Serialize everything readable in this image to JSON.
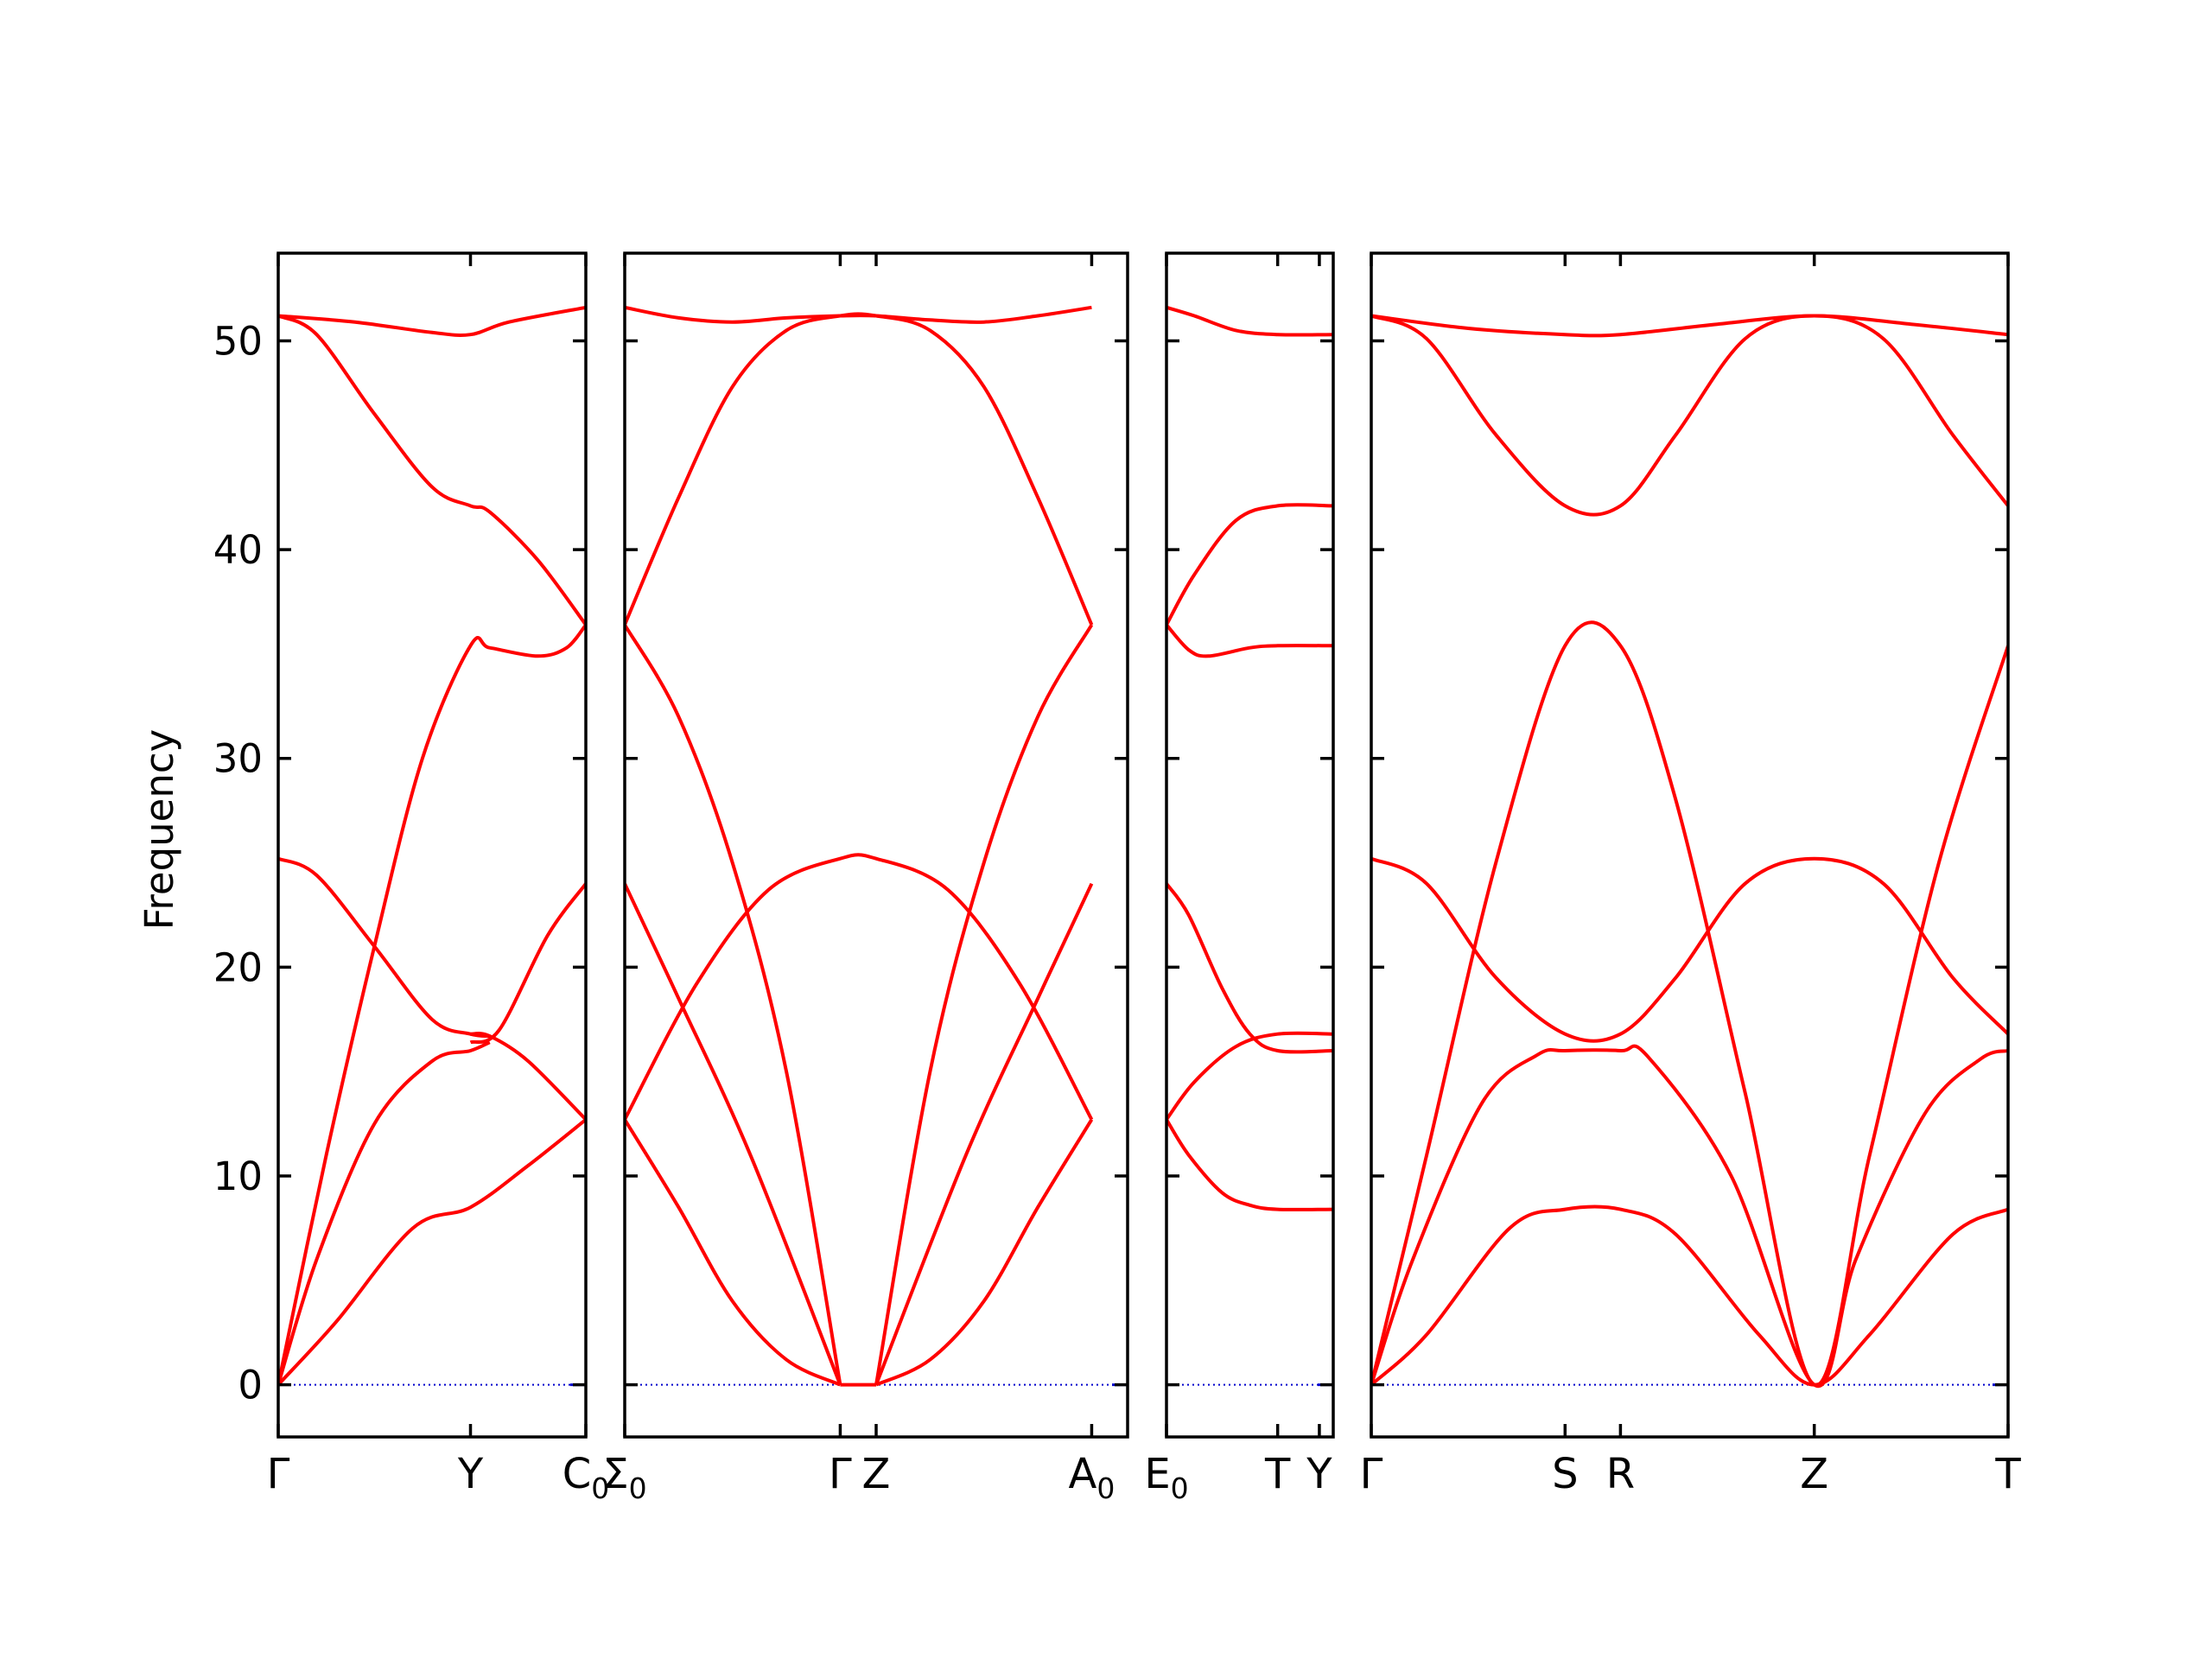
{
  "chart_data": {
    "type": "line",
    "ylabel": "Frequency",
    "ylim": [
      -2.5,
      54.2
    ],
    "yticks": [
      0,
      10,
      20,
      30,
      40,
      50
    ],
    "grid": false,
    "line_color": "#ff0000",
    "zero_line_color": "#0000cc",
    "panels": [
      {
        "name": "panel-1",
        "xlim": [
          0,
          1.6
        ],
        "points": [
          {
            "x": 0,
            "label": "Γ",
            "sub": ""
          },
          {
            "x": 1.0,
            "label": "Y",
            "sub": ""
          },
          {
            "x": 1.6,
            "label": "C",
            "sub": "0"
          }
        ],
        "bands": [
          [
            [
              0,
              0
            ],
            [
              0.3,
              3
            ],
            [
              0.7,
              7.5
            ],
            [
              1.0,
              8.5
            ],
            [
              1.3,
              10.5
            ],
            [
              1.6,
              12.7
            ]
          ],
          [
            [
              0,
              0
            ],
            [
              0.2,
              6
            ],
            [
              0.5,
              12.5
            ],
            [
              0.8,
              15.5
            ],
            [
              1.0,
              16
            ],
            [
              1.1,
              16.4
            ]
          ],
          [
            [
              1.0,
              16.8
            ],
            [
              1.1,
              16.7
            ],
            [
              1.3,
              15.5
            ],
            [
              1.6,
              12.7
            ]
          ],
          [
            [
              0,
              0
            ],
            [
              0.25,
              11
            ],
            [
              0.5,
              21
            ],
            [
              0.75,
              30
            ],
            [
              1.0,
              35.4
            ],
            [
              1.1,
              35.3
            ],
            [
              1.35,
              34.9
            ],
            [
              1.5,
              35.3
            ],
            [
              1.6,
              36.4
            ]
          ],
          [
            [
              0,
              25.2
            ],
            [
              0.2,
              24.4
            ],
            [
              0.5,
              21
            ],
            [
              0.8,
              17.5
            ],
            [
              1.0,
              16.8
            ],
            [
              1.1,
              16.7
            ]
          ],
          [
            [
              1.0,
              16.4
            ],
            [
              1.15,
              17
            ],
            [
              1.4,
              21.5
            ],
            [
              1.6,
              24
            ]
          ],
          [
            [
              0,
              51.2
            ],
            [
              0.2,
              50.3
            ],
            [
              0.5,
              46.5
            ],
            [
              0.8,
              43
            ],
            [
              1.0,
              42.1
            ],
            [
              1.1,
              41.8
            ],
            [
              1.35,
              39.5
            ],
            [
              1.6,
              36.4
            ]
          ],
          [
            [
              0,
              51.2
            ],
            [
              0.4,
              50.9
            ],
            [
              0.8,
              50.4
            ],
            [
              1.0,
              50.3
            ],
            [
              1.2,
              50.9
            ],
            [
              1.6,
              51.6
            ]
          ]
        ]
      },
      {
        "name": "panel-2",
        "xlim": [
          0,
          1.4
        ],
        "points": [
          {
            "x": 0,
            "label": "Σ",
            "sub": "0"
          },
          {
            "x": 0.6,
            "label": "Γ",
            "sub": ""
          },
          {
            "x": 0.7,
            "label": "Z",
            "sub": ""
          },
          {
            "x": 1.3,
            "label": "A",
            "sub": "0"
          }
        ],
        "bands": [
          [
            [
              0,
              12.7
            ],
            [
              0.15,
              8.5
            ],
            [
              0.3,
              4
            ],
            [
              0.45,
              1.2
            ],
            [
              0.6,
              0
            ]
          ],
          [
            [
              0,
              24
            ],
            [
              0.15,
              18.5
            ],
            [
              0.35,
              11
            ],
            [
              0.6,
              0
            ]
          ],
          [
            [
              0,
              36.4
            ],
            [
              0.15,
              32
            ],
            [
              0.3,
              25
            ],
            [
              0.45,
              15
            ],
            [
              0.6,
              0
            ]
          ],
          [
            [
              0,
              12.7
            ],
            [
              0.2,
              19.2
            ],
            [
              0.4,
              23.7
            ],
            [
              0.6,
              25.2
            ],
            [
              0.7,
              25.2
            ],
            [
              0.9,
              23.7
            ],
            [
              1.1,
              19.2
            ],
            [
              1.3,
              12.7
            ]
          ],
          [
            [
              0,
              36.4
            ],
            [
              0.15,
              42.5
            ],
            [
              0.3,
              47.8
            ],
            [
              0.45,
              50.5
            ],
            [
              0.6,
              51.2
            ],
            [
              0.7,
              51.2
            ],
            [
              0.85,
              50.5
            ],
            [
              1.0,
              47.8
            ],
            [
              1.15,
              42.5
            ],
            [
              1.3,
              36.4
            ]
          ],
          [
            [
              0,
              51.6
            ],
            [
              0.15,
              51.1
            ],
            [
              0.3,
              50.9
            ],
            [
              0.45,
              51.1
            ],
            [
              0.6,
              51.2
            ],
            [
              0.7,
              51.2
            ],
            [
              0.85,
              51.0
            ],
            [
              1.0,
              50.9
            ],
            [
              1.15,
              51.2
            ],
            [
              1.3,
              51.6
            ]
          ],
          [
            [
              0.6,
              0
            ],
            [
              0.7,
              0
            ]
          ],
          [
            [
              0.7,
              0
            ],
            [
              0.85,
              1.2
            ],
            [
              1.0,
              4
            ],
            [
              1.15,
              8.5
            ],
            [
              1.3,
              12.7
            ]
          ],
          [
            [
              0.7,
              0
            ],
            [
              0.95,
              11
            ],
            [
              1.15,
              18.5
            ],
            [
              1.3,
              24
            ]
          ],
          [
            [
              0.7,
              0
            ],
            [
              0.85,
              15
            ],
            [
              1.0,
              25
            ],
            [
              1.15,
              32
            ],
            [
              1.3,
              36.4
            ]
          ]
        ]
      },
      {
        "name": "panel-3",
        "xlim": [
          0,
          0.6
        ],
        "points": [
          {
            "x": 0,
            "label": "E",
            "sub": "0"
          },
          {
            "x": 0.4,
            "label": "T",
            "sub": ""
          },
          {
            "x": 0.55,
            "label": "Y",
            "sub": ""
          }
        ],
        "bands": [
          [
            [
              0,
              12.7
            ],
            [
              0.08,
              11
            ],
            [
              0.2,
              9.2
            ],
            [
              0.3,
              8.6
            ],
            [
              0.4,
              8.4
            ],
            [
              0.6,
              8.4
            ]
          ],
          [
            [
              0,
              12.7
            ],
            [
              0.1,
              14.5
            ],
            [
              0.25,
              16.2
            ],
            [
              0.4,
              16.8
            ],
            [
              0.6,
              16.8
            ]
          ],
          [
            [
              0,
              24
            ],
            [
              0.08,
              22.5
            ],
            [
              0.2,
              19
            ],
            [
              0.3,
              16.8
            ],
            [
              0.4,
              16
            ],
            [
              0.6,
              16
            ]
          ],
          [
            [
              0,
              36.4
            ],
            [
              0.08,
              35.2
            ],
            [
              0.15,
              34.9
            ],
            [
              0.3,
              35.3
            ],
            [
              0.4,
              35.4
            ],
            [
              0.6,
              35.4
            ]
          ],
          [
            [
              0,
              36.4
            ],
            [
              0.1,
              38.8
            ],
            [
              0.25,
              41.4
            ],
            [
              0.4,
              42.1
            ],
            [
              0.6,
              42.1
            ]
          ],
          [
            [
              0,
              51.6
            ],
            [
              0.1,
              51.2
            ],
            [
              0.25,
              50.5
            ],
            [
              0.4,
              50.3
            ],
            [
              0.6,
              50.3
            ]
          ]
        ]
      },
      {
        "name": "panel-4",
        "xlim": [
          0,
          2.3
        ],
        "points": [
          {
            "x": 0,
            "label": "Γ",
            "sub": ""
          },
          {
            "x": 0.7,
            "label": "S",
            "sub": ""
          },
          {
            "x": 0.9,
            "label": "R",
            "sub": ""
          },
          {
            "x": 1.6,
            "label": "Z",
            "sub": ""
          },
          {
            "x": 2.3,
            "label": "T",
            "sub": ""
          }
        ],
        "bands": [
          [
            [
              0,
              0
            ],
            [
              0.2,
              2.4
            ],
            [
              0.5,
              7.5
            ],
            [
              0.7,
              8.4
            ],
            [
              0.9,
              8.4
            ],
            [
              1.1,
              7.2
            ],
            [
              1.4,
              2.4
            ],
            [
              1.6,
              0
            ],
            [
              1.8,
              2.4
            ],
            [
              2.1,
              7.2
            ],
            [
              2.3,
              8.4
            ]
          ],
          [
            [
              0,
              0
            ],
            [
              0.15,
              6
            ],
            [
              0.4,
              13.5
            ],
            [
              0.6,
              15.8
            ],
            [
              0.7,
              16
            ],
            [
              0.9,
              16
            ],
            [
              1.0,
              15.7
            ],
            [
              1.3,
              10
            ],
            [
              1.6,
              0
            ],
            [
              1.75,
              6
            ],
            [
              2.0,
              13
            ],
            [
              2.2,
              15.6
            ],
            [
              2.3,
              16
            ]
          ],
          [
            [
              0,
              25.2
            ],
            [
              0.2,
              24
            ],
            [
              0.45,
              19.5
            ],
            [
              0.7,
              16.8
            ],
            [
              0.9,
              16.8
            ],
            [
              1.1,
              19.5
            ],
            [
              1.35,
              24
            ],
            [
              1.6,
              25.2
            ],
            [
              1.85,
              24
            ],
            [
              2.1,
              19.5
            ],
            [
              2.3,
              16.8
            ]
          ],
          [
            [
              0,
              0
            ],
            [
              0.2,
              11
            ],
            [
              0.45,
              25
            ],
            [
              0.7,
              35.4
            ],
            [
              0.9,
              35.4
            ],
            [
              1.1,
              28
            ],
            [
              1.35,
              14
            ],
            [
              1.6,
              0
            ],
            [
              1.8,
              11
            ],
            [
              2.05,
              25
            ],
            [
              2.3,
              35.4
            ]
          ],
          [
            [
              0,
              51.2
            ],
            [
              0.2,
              50.1
            ],
            [
              0.45,
              45.5
            ],
            [
              0.7,
              42.1
            ],
            [
              0.9,
              42.1
            ],
            [
              1.1,
              45.5
            ],
            [
              1.35,
              50.1
            ],
            [
              1.6,
              51.2
            ],
            [
              1.85,
              50.1
            ],
            [
              2.1,
              45.5
            ],
            [
              2.3,
              42.1
            ]
          ],
          [
            [
              0,
              51.2
            ],
            [
              0.35,
              50.6
            ],
            [
              0.7,
              50.3
            ],
            [
              0.9,
              50.3
            ],
            [
              1.25,
              50.8
            ],
            [
              1.6,
              51.2
            ],
            [
              1.95,
              50.8
            ],
            [
              2.3,
              50.3
            ]
          ]
        ]
      }
    ]
  }
}
